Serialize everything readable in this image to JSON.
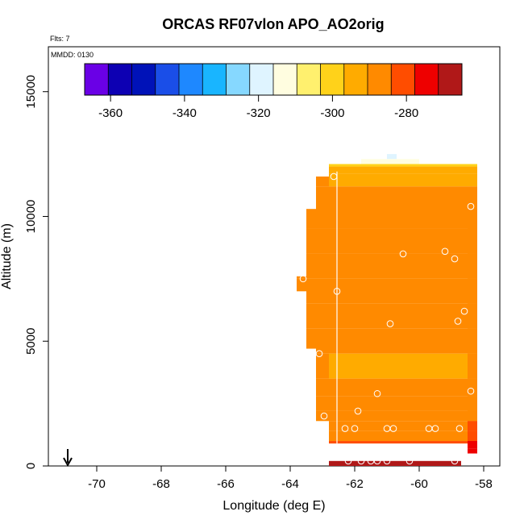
{
  "chart_data": {
    "type": "heatmap",
    "title": "ORCAS RF07vlon APO_AO2orig",
    "annotations": {
      "flts": "Flts: 7",
      "mmdd": "MMDD: 0130"
    },
    "xlabel": "Longitude (deg E)",
    "ylabel": "Altitude (m)",
    "xlim": [
      -71.5,
      -57.5
    ],
    "ylim": [
      0,
      16800
    ],
    "xticks": [
      -70,
      -68,
      -66,
      -64,
      -62,
      -60,
      -58
    ],
    "yticks": [
      0,
      5000,
      10000,
      15000
    ],
    "colorbar": {
      "min": -367,
      "max": -265,
      "ticks": [
        -360,
        -340,
        -320,
        -300,
        -280
      ],
      "colors": [
        "#6a00e6",
        "#0d00b3",
        "#0012b8",
        "#1a4ee8",
        "#1e88ff",
        "#19b5ff",
        "#86d8ff",
        "#dff4ff",
        "#fffde0",
        "#fff06e",
        "#ffd21a",
        "#ffab00",
        "#ff8a00",
        "#ff4d00",
        "#ee0000",
        "#b01818"
      ]
    },
    "columns": [
      {
        "lon_start": -63.8,
        "lon_end": -63.5,
        "alt_bottom": 7000,
        "alt_top": 7600,
        "value": -282
      },
      {
        "lon_start": -63.5,
        "lon_end": -63.2,
        "alt_bottom": 4700,
        "alt_top": 10300,
        "value": -283
      },
      {
        "lon_start": -63.2,
        "lon_end": -62.8,
        "alt_bottom": 1800,
        "alt_top": 11600,
        "value": -285
      },
      {
        "lon_start": -62.8,
        "lon_end": -58.2,
        "alt_bottom": 900,
        "alt_top": 12100,
        "value": -290
      },
      {
        "lon_start": -58.5,
        "lon_end": -58.2,
        "alt_bottom": 500,
        "alt_top": 10500,
        "value": -283
      }
    ],
    "layers": [
      {
        "alt_bottom": 12000,
        "alt_top": 12100,
        "value": -306
      },
      {
        "alt_bottom": 11700,
        "alt_top": 12000,
        "value": -298
      },
      {
        "alt_bottom": 11200,
        "alt_top": 11700,
        "value": -292
      },
      {
        "alt_bottom": 10500,
        "alt_top": 11200,
        "value": -287
      },
      {
        "alt_bottom": 9500,
        "alt_top": 10500,
        "value": -286
      },
      {
        "alt_bottom": 8500,
        "alt_top": 9500,
        "value": -288
      },
      {
        "alt_bottom": 7500,
        "alt_top": 8500,
        "value": -290
      },
      {
        "alt_bottom": 6500,
        "alt_top": 7500,
        "value": -291
      },
      {
        "alt_bottom": 5500,
        "alt_top": 6500,
        "value": -289
      },
      {
        "alt_bottom": 4500,
        "alt_top": 5500,
        "value": -291
      },
      {
        "alt_bottom": 3500,
        "alt_top": 4500,
        "value": -292
      },
      {
        "alt_bottom": 2800,
        "alt_top": 3500,
        "value": -290
      },
      {
        "alt_bottom": 2200,
        "alt_top": 2800,
        "value": -289
      },
      {
        "alt_bottom": 1800,
        "alt_top": 2200,
        "value": -287
      },
      {
        "alt_bottom": 1400,
        "alt_top": 1800,
        "value": -284
      },
      {
        "alt_bottom": 1000,
        "alt_top": 1400,
        "value": -279
      },
      {
        "alt_bottom": 700,
        "alt_top": 1000,
        "value": -270
      },
      {
        "alt_bottom": 500,
        "alt_top": 700,
        "value": -268
      }
    ],
    "small_patches": [
      {
        "lon_start": -61.0,
        "lon_end": -60.7,
        "alt_bottom": 12300,
        "alt_top": 12500,
        "value": -318
      },
      {
        "lon_start": -61.8,
        "lon_end": -60.0,
        "alt_bottom": 12100,
        "alt_top": 12300,
        "value": -312
      },
      {
        "lon_start": -62.8,
        "lon_end": -58.7,
        "alt_bottom": 0,
        "alt_top": 200,
        "value": -270
      }
    ],
    "flight_track_lon": -62.55,
    "points": [
      {
        "lon": -62.65,
        "alt": 11600
      },
      {
        "lon": -58.4,
        "alt": 10400
      },
      {
        "lon": -60.5,
        "alt": 8500
      },
      {
        "lon": -59.2,
        "alt": 8600
      },
      {
        "lon": -58.9,
        "alt": 8300
      },
      {
        "lon": -63.6,
        "alt": 7500
      },
      {
        "lon": -62.55,
        "alt": 7000
      },
      {
        "lon": -58.6,
        "alt": 6200
      },
      {
        "lon": -58.8,
        "alt": 5800
      },
      {
        "lon": -60.9,
        "alt": 5700
      },
      {
        "lon": -63.1,
        "alt": 4500
      },
      {
        "lon": -58.4,
        "alt": 3000
      },
      {
        "lon": -61.3,
        "alt": 2900
      },
      {
        "lon": -61.9,
        "alt": 2200
      },
      {
        "lon": -62.95,
        "alt": 2000
      },
      {
        "lon": -62.3,
        "alt": 1500
      },
      {
        "lon": -62.0,
        "alt": 1500
      },
      {
        "lon": -61.0,
        "alt": 1500
      },
      {
        "lon": -60.8,
        "alt": 1500
      },
      {
        "lon": -59.7,
        "alt": 1500
      },
      {
        "lon": -59.5,
        "alt": 1500
      },
      {
        "lon": -58.75,
        "alt": 1500
      },
      {
        "lon": -62.2,
        "alt": 200
      },
      {
        "lon": -61.8,
        "alt": 200
      },
      {
        "lon": -61.5,
        "alt": 200
      },
      {
        "lon": -61.3,
        "alt": 200
      },
      {
        "lon": -61.0,
        "alt": 200
      },
      {
        "lon": -60.3,
        "alt": 200
      },
      {
        "lon": -58.9,
        "alt": 200
      }
    ],
    "arrow_lon": -70.9
  }
}
